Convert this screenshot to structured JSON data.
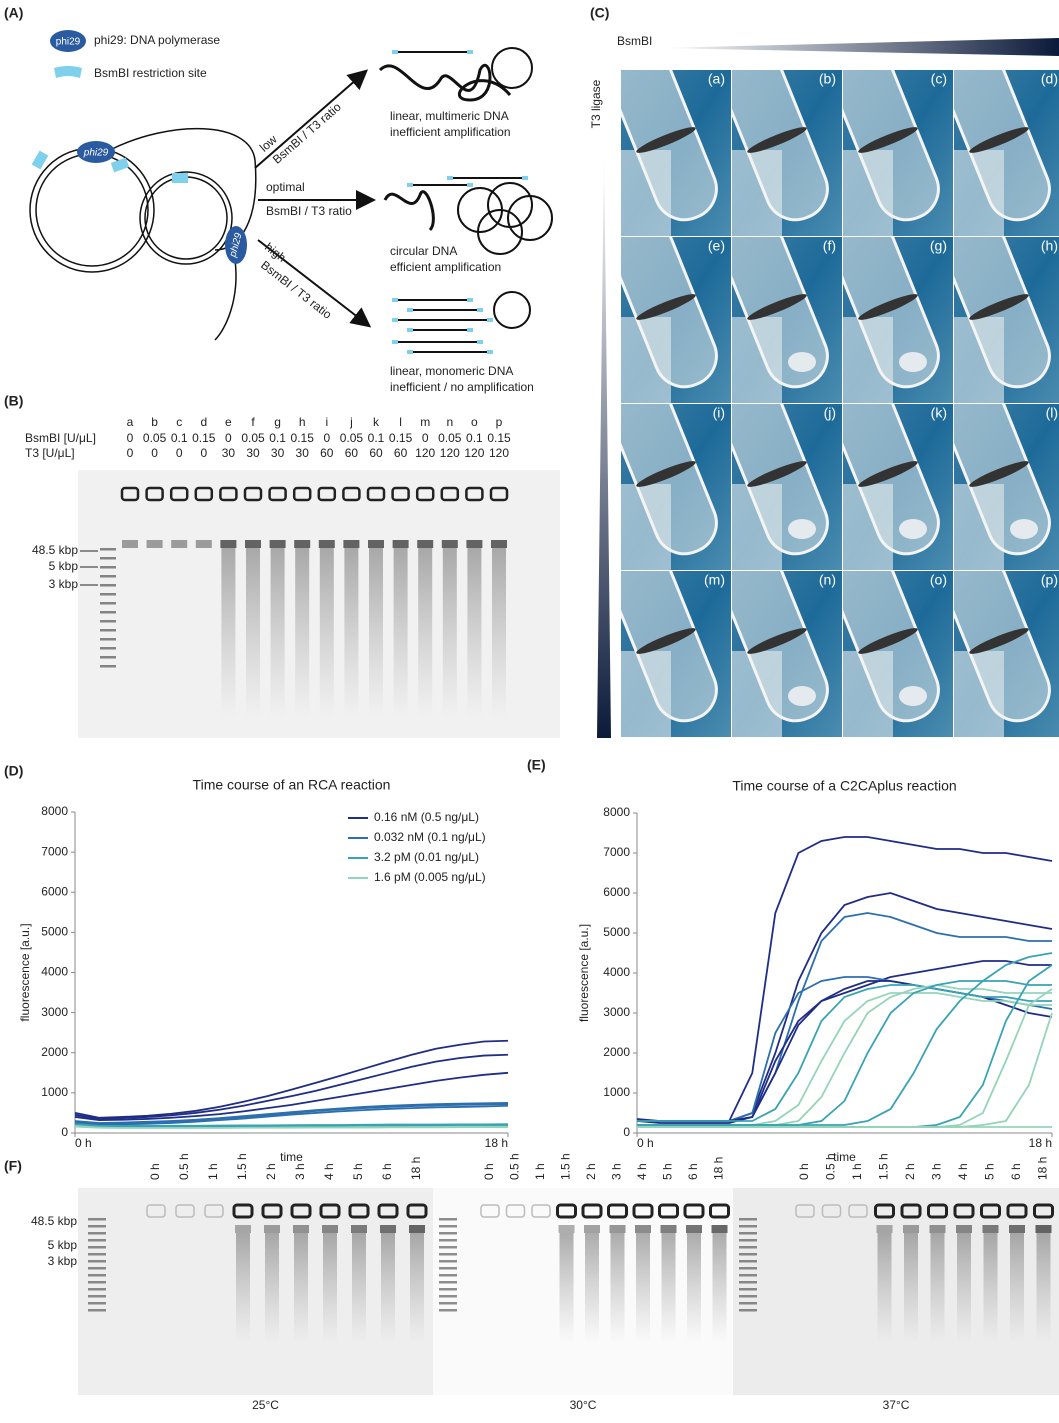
{
  "panel_labels": [
    "(A)",
    "(B)",
    "(C)",
    "(D)",
    "(E)",
    "(F)"
  ],
  "A": {
    "legend_tag": "phi29",
    "legend": [
      "phi29: DNA polymerase",
      "BsmBI restriction site"
    ],
    "enzyme_labels": [
      "phi29",
      "phi29"
    ],
    "conditions": [
      {
        "level": "low",
        "ratio": "BsmBI / T3 ratio",
        "outcome": [
          "linear, multimeric DNA",
          "inefficient amplification"
        ]
      },
      {
        "level": "optimal",
        "ratio": "BsmBI / T3 ratio",
        "outcome": [
          "circular DNA",
          "efficient amplification"
        ]
      },
      {
        "level": "high",
        "ratio": "BsmBI / T3 ratio",
        "outcome": [
          "linear, monomeric DNA",
          "inefficient / no amplification"
        ]
      }
    ]
  },
  "B": {
    "lanes": [
      "a",
      "b",
      "c",
      "d",
      "e",
      "f",
      "g",
      "h",
      "i",
      "j",
      "k",
      "l",
      "m",
      "n",
      "o",
      "p"
    ],
    "row_labels": [
      "BsmBI [U/μL]",
      "T3 [U/μL]"
    ],
    "bsmbi": [
      "0",
      "0.05",
      "0.1",
      "0.15",
      "0",
      "0.05",
      "0.1",
      "0.15",
      "0",
      "0.05",
      "0.1",
      "0.15",
      "0",
      "0.05",
      "0.1",
      "0.15"
    ],
    "t3": [
      "0",
      "0",
      "0",
      "0",
      "30",
      "30",
      "30",
      "30",
      "60",
      "60",
      "60",
      "60",
      "120",
      "120",
      "120",
      "120"
    ],
    "ladder": [
      "48.5 kbp",
      "5 kbp",
      "3 kbp"
    ]
  },
  "C": {
    "x_label": "BsmBI",
    "y_label": "T3 ligase",
    "cells": [
      "(a)",
      "(b)",
      "(c)",
      "(d)",
      "(e)",
      "(f)",
      "(g)",
      "(h)",
      "(i)",
      "(j)",
      "(k)",
      "(l)",
      "(m)",
      "(n)",
      "(o)",
      "(p)"
    ]
  },
  "chart_data": [
    {
      "type": "line",
      "title": "Time course of an RCA reaction",
      "x_label": "time",
      "y_label": "fluorescence [a.u.]",
      "x": [
        0,
        1,
        2,
        3,
        4,
        5,
        6,
        7,
        8,
        9,
        10,
        11,
        12,
        13,
        14,
        15,
        16,
        17,
        18
      ],
      "xlim": [
        0,
        18
      ],
      "xticks": [
        {
          "value": 0,
          "label": "0 h"
        },
        {
          "value": 18,
          "label": "18 h"
        }
      ],
      "ylim": [
        0,
        8000
      ],
      "yticks": [
        0,
        1000,
        2000,
        3000,
        4000,
        5000,
        6000,
        7000,
        8000
      ],
      "legend": "upper right",
      "series": [
        {
          "name": "0.16 nM (0.5 ng/μL)",
          "color": "#1f2d86",
          "values": [
            500,
            380,
            400,
            430,
            480,
            550,
            650,
            780,
            920,
            1080,
            1250,
            1420,
            1600,
            1780,
            1950,
            2100,
            2200,
            2280,
            2300
          ]
        },
        {
          "name": "0.032 nM (0.1 ng/μL)",
          "color": "#2c6fae",
          "values": [
            300,
            250,
            260,
            280,
            300,
            330,
            370,
            420,
            470,
            520,
            570,
            610,
            650,
            680,
            700,
            720,
            730,
            740,
            750
          ]
        },
        {
          "name": "3.2 pM (0.01 ng/μL)",
          "color": "#38a3b4",
          "values": [
            250,
            200,
            190,
            180,
            180,
            180,
            185,
            190,
            190,
            195,
            200,
            200,
            205,
            210,
            210,
            210,
            215,
            215,
            220
          ]
        },
        {
          "name": "1.6 pM (0.005 ng/μL)",
          "color": "#94d4b9",
          "values": [
            180,
            150,
            140,
            140,
            140,
            140,
            140,
            145,
            145,
            150,
            150,
            150,
            150,
            155,
            155,
            155,
            160,
            160,
            160
          ]
        },
        {
          "color": "#1f2d86",
          "values": [
            450,
            350,
            370,
            400,
            440,
            500,
            580,
            680,
            800,
            920,
            1050,
            1200,
            1350,
            1500,
            1650,
            1780,
            1870,
            1930,
            1950
          ]
        },
        {
          "color": "#1f2d86",
          "values": [
            400,
            320,
            330,
            350,
            380,
            420,
            470,
            540,
            620,
            700,
            800,
            900,
            1000,
            1100,
            1200,
            1300,
            1380,
            1450,
            1500
          ]
        },
        {
          "color": "#2c6fae",
          "values": [
            280,
            230,
            240,
            260,
            280,
            310,
            350,
            400,
            450,
            500,
            550,
            590,
            620,
            650,
            670,
            690,
            700,
            710,
            720
          ]
        },
        {
          "color": "#2c6fae",
          "values": [
            260,
            220,
            220,
            230,
            250,
            280,
            320,
            360,
            410,
            460,
            500,
            540,
            570,
            600,
            620,
            640,
            650,
            660,
            680
          ]
        },
        {
          "color": "#38a3b4",
          "values": [
            220,
            180,
            170,
            165,
            165,
            165,
            170,
            170,
            175,
            180,
            180,
            185,
            190,
            190,
            195,
            195,
            200,
            200,
            200
          ]
        },
        {
          "color": "#94d4b9",
          "values": [
            160,
            130,
            125,
            125,
            125,
            125,
            125,
            130,
            130,
            130,
            135,
            135,
            135,
            140,
            140,
            140,
            145,
            145,
            145
          ]
        }
      ]
    },
    {
      "type": "line",
      "title": "Time course of a C2CAplus reaction",
      "x_label": "time",
      "y_label": "fluorescence [a.u.]",
      "x": [
        0,
        1,
        2,
        3,
        4,
        5,
        6,
        7,
        8,
        9,
        10,
        11,
        12,
        13,
        14,
        15,
        16,
        17,
        18
      ],
      "xlim": [
        0,
        18
      ],
      "xticks": [
        {
          "value": 0,
          "label": "0 h"
        },
        {
          "value": 18,
          "label": "18 h"
        }
      ],
      "ylim": [
        0,
        8000
      ],
      "yticks": [
        0,
        1000,
        2000,
        3000,
        4000,
        5000,
        6000,
        7000,
        8000
      ],
      "series": [
        {
          "color": "#1f2d86",
          "values": [
            350,
            300,
            300,
            300,
            300,
            1500,
            5500,
            7000,
            7300,
            7400,
            7400,
            7300,
            7200,
            7100,
            7100,
            7000,
            7000,
            6900,
            6800
          ]
        },
        {
          "color": "#1f2d86",
          "values": [
            300,
            300,
            300,
            300,
            300,
            500,
            2000,
            3800,
            5000,
            5700,
            5900,
            6000,
            5800,
            5600,
            5500,
            5400,
            5300,
            5200,
            5100
          ]
        },
        {
          "color": "#2c6fae",
          "values": [
            300,
            300,
            300,
            300,
            300,
            400,
            1500,
            3300,
            4800,
            5400,
            5500,
            5400,
            5200,
            5000,
            4900,
            4900,
            4900,
            4800,
            4800
          ]
        },
        {
          "color": "#1f2d86",
          "values": [
            300,
            250,
            250,
            250,
            250,
            400,
            1800,
            2800,
            3300,
            3500,
            3700,
            3900,
            4000,
            4100,
            4200,
            4300,
            4300,
            4200,
            4200
          ]
        },
        {
          "color": "#2c6fae",
          "values": [
            300,
            300,
            300,
            300,
            300,
            500,
            2500,
            3500,
            3800,
            3900,
            3900,
            3800,
            3700,
            3600,
            3500,
            3400,
            3300,
            3200,
            3100
          ]
        },
        {
          "color": "#1f2d86",
          "values": [
            300,
            300,
            300,
            300,
            300,
            400,
            1500,
            2700,
            3300,
            3600,
            3800,
            3800,
            3700,
            3600,
            3500,
            3400,
            3200,
            3000,
            2900
          ]
        },
        {
          "color": "#38a3b4",
          "values": [
            300,
            300,
            300,
            300,
            300,
            300,
            600,
            1500,
            2800,
            3400,
            3600,
            3700,
            3700,
            3600,
            3500,
            3400,
            3400,
            3300,
            3300
          ]
        },
        {
          "color": "#94d4b9",
          "values": [
            200,
            200,
            200,
            200,
            200,
            200,
            300,
            700,
            1800,
            2800,
            3300,
            3500,
            3500,
            3500,
            3400,
            3300,
            3300,
            3200,
            3200
          ]
        },
        {
          "color": "#94d4b9",
          "values": [
            200,
            200,
            200,
            200,
            200,
            200,
            200,
            300,
            900,
            2000,
            3000,
            3400,
            3600,
            3700,
            3600,
            3600,
            3500,
            3500,
            3500
          ]
        },
        {
          "color": "#38a3b4",
          "values": [
            200,
            200,
            200,
            200,
            200,
            200,
            200,
            200,
            300,
            800,
            2000,
            3000,
            3500,
            3700,
            3800,
            3800,
            3800,
            3700,
            3700
          ]
        },
        {
          "color": "#38a3b4",
          "values": [
            200,
            200,
            200,
            200,
            200,
            200,
            200,
            200,
            200,
            200,
            300,
            600,
            1500,
            2600,
            3300,
            3800,
            4200,
            4400,
            4500
          ]
        },
        {
          "color": "#38a3b4",
          "values": [
            150,
            150,
            150,
            150,
            150,
            150,
            150,
            150,
            150,
            150,
            150,
            150,
            150,
            200,
            400,
            1200,
            2800,
            3800,
            4200
          ]
        },
        {
          "color": "#94d4b9",
          "values": [
            150,
            150,
            150,
            150,
            150,
            150,
            150,
            150,
            150,
            150,
            150,
            150,
            150,
            150,
            200,
            500,
            1800,
            3200,
            3600
          ]
        },
        {
          "color": "#94d4b9",
          "values": [
            150,
            150,
            150,
            150,
            150,
            150,
            150,
            150,
            150,
            150,
            150,
            150,
            150,
            150,
            150,
            200,
            300,
            1200,
            3000
          ]
        },
        {
          "color": "#94d4b9",
          "values": [
            150,
            150,
            150,
            150,
            150,
            150,
            150,
            150,
            150,
            150,
            150,
            150,
            150,
            150,
            150,
            150,
            150,
            150,
            150
          ]
        }
      ]
    }
  ],
  "F": {
    "lanes": [
      "0 h",
      "0.5 h",
      "1 h",
      "1.5 h",
      "2 h",
      "3 h",
      "4 h",
      "5 h",
      "6 h",
      "18 h"
    ],
    "ladder": [
      "48.5 kbp",
      "5 kbp",
      "3 kbp"
    ],
    "temperatures": [
      "25°C",
      "30°C",
      "37°C"
    ]
  }
}
